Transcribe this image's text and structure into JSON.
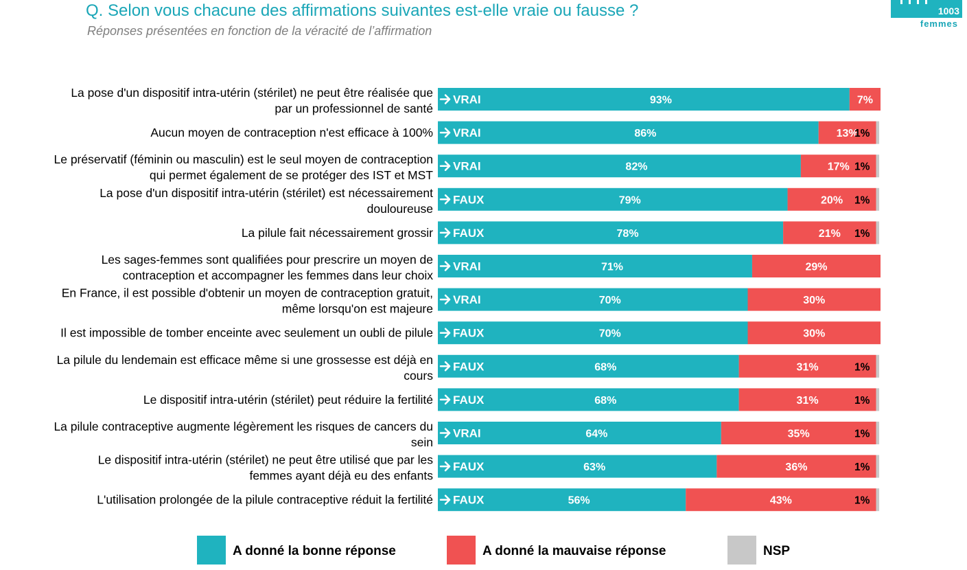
{
  "header": {
    "title": "Q. Selon vous chacune des affirmations suivantes est-elle vraie ou fausse ?",
    "subtitle": "Réponses présentées en fonction de la véracité de l’affirmation"
  },
  "logo": {
    "count": "1003",
    "label": "femmes"
  },
  "colors": {
    "correct": "#1fb3bf",
    "wrong": "#f05252",
    "nsp": "#c8c8c8",
    "title": "#1aa6b7"
  },
  "chart_data": {
    "type": "bar",
    "orientation": "horizontal",
    "stacked": true,
    "xlim": [
      0,
      100
    ],
    "unit": "%",
    "legend_position": "bottom",
    "series": [
      {
        "name": "A donné la bonne réponse",
        "color": "#1fb3bf"
      },
      {
        "name": "A donné la mauvaise réponse",
        "color": "#f05252"
      },
      {
        "name": "NSP",
        "color": "#c8c8c8"
      }
    ],
    "rows": [
      {
        "lines": [
          "La pose d'un dispositif intra-utérin (stérilet) ne peut être réalisée que",
          "par un professionnel de santé"
        ],
        "answer": "VRAI",
        "correct": 93,
        "wrong": 7,
        "nsp": null
      },
      {
        "lines": [
          "Aucun moyen de contraception n'est efficace à 100%"
        ],
        "answer": "VRAI",
        "correct": 86,
        "wrong": 13,
        "nsp": 1
      },
      {
        "lines": [
          "Le préservatif (féminin ou masculin) est le seul moyen de contraception",
          "qui permet également de se protéger des IST et MST"
        ],
        "answer": "VRAI",
        "correct": 82,
        "wrong": 17,
        "nsp": 1
      },
      {
        "lines": [
          "La pose d'un dispositif intra-utérin (stérilet) est nécessairement",
          "douloureuse"
        ],
        "answer": "FAUX",
        "correct": 79,
        "wrong": 20,
        "nsp": 1
      },
      {
        "lines": [
          "La pilule fait nécessairement grossir"
        ],
        "answer": "FAUX",
        "correct": 78,
        "wrong": 21,
        "nsp": 1
      },
      {
        "lines": [
          "Les sages-femmes sont qualifiées pour prescrire un moyen de",
          "contraception et accompagner les femmes dans leur choix"
        ],
        "answer": "VRAI",
        "correct": 71,
        "wrong": 29,
        "nsp": null
      },
      {
        "lines": [
          "En France, il est possible d'obtenir un moyen de contraception gratuit,",
          "même lorsqu'on est majeure"
        ],
        "answer": "VRAI",
        "correct": 70,
        "wrong": 30,
        "nsp": null
      },
      {
        "lines": [
          "Il est impossible de tomber enceinte avec seulement un oubli de pilule"
        ],
        "answer": "FAUX",
        "correct": 70,
        "wrong": 30,
        "nsp": null
      },
      {
        "lines": [
          "La pilule du lendemain est efficace même si une grossesse est déjà en",
          "cours"
        ],
        "answer": "FAUX",
        "correct": 68,
        "wrong": 31,
        "nsp": 1
      },
      {
        "lines": [
          "Le dispositif intra-utérin (stérilet) peut réduire la fertilité"
        ],
        "answer": "FAUX",
        "correct": 68,
        "wrong": 31,
        "nsp": 1
      },
      {
        "lines": [
          "La pilule contraceptive augmente légèrement les risques de cancers du",
          "sein"
        ],
        "answer": "VRAI",
        "correct": 64,
        "wrong": 35,
        "nsp": 1
      },
      {
        "lines": [
          "Le dispositif intra-utérin (stérilet) ne peut être utilisé que par les",
          "femmes ayant déjà eu des enfants"
        ],
        "answer": "FAUX",
        "correct": 63,
        "wrong": 36,
        "nsp": 1
      },
      {
        "lines": [
          "L'utilisation prolongée de la pilule contraceptive réduit la fertilité"
        ],
        "answer": "FAUX",
        "correct": 56,
        "wrong": 43,
        "nsp": 1
      }
    ]
  }
}
